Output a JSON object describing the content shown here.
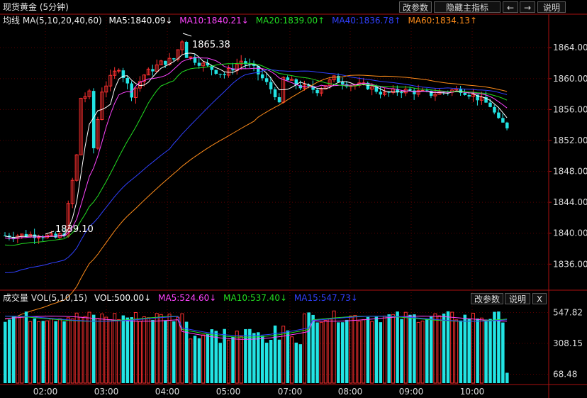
{
  "title": "现货黄金 (5分钟)",
  "toolbar": {
    "edit_params": "改参数",
    "hide_indicator": "隐藏主指标",
    "left_arrow": "←",
    "right_arrow": "→",
    "help": "说明"
  },
  "main_indicator": {
    "label": "均线 MA(5,10,20,40,60)",
    "items": [
      {
        "text": "MA5:1840.09↓",
        "color": "#ffffff"
      },
      {
        "text": "MA10:1840.21↓",
        "color": "#ff44ff"
      },
      {
        "text": "MA20:1839.00↑",
        "color": "#22dd22"
      },
      {
        "text": "MA40:1836.78↑",
        "color": "#3040ff"
      },
      {
        "text": "MA60:1834.13↑",
        "color": "#ff8c1a"
      }
    ]
  },
  "volume_indicator": {
    "label": "成交量 VOL(5,10,15)",
    "items": [
      {
        "text": "VOL:500.00↓",
        "color": "#ffffff"
      },
      {
        "text": "MA5:524.60↓",
        "color": "#ff44ff"
      },
      {
        "text": "MA10:537.40↓",
        "color": "#22dd22"
      },
      {
        "text": "MA15:547.73↓",
        "color": "#3040ff"
      }
    ],
    "edit_params": "改参数",
    "help": "说明",
    "close": "X"
  },
  "chart_data": {
    "type": "candlestick",
    "price_axis": {
      "ticks": [
        "1864.00",
        "1860.00",
        "1856.00",
        "1852.00",
        "1848.00",
        "1844.00",
        "1840.00",
        "1836.00"
      ],
      "range": [
        1833.0,
        1866.5
      ]
    },
    "volume_axis": {
      "ticks": [
        "547.82",
        "308.15",
        "68.48"
      ],
      "range": [
        0,
        600
      ]
    },
    "time_labels": [
      "02:00",
      "03:00",
      "04:00",
      "05:00",
      "07:00",
      "08:00",
      "09:00",
      "10:00"
    ],
    "annotations": [
      {
        "text": "1865.38"
      },
      {
        "text": "1839.10"
      }
    ],
    "colors": {
      "up": "#ff3030",
      "down": "#22e4e4",
      "grid": "#5a0000",
      "axis": "#aa1010"
    }
  }
}
